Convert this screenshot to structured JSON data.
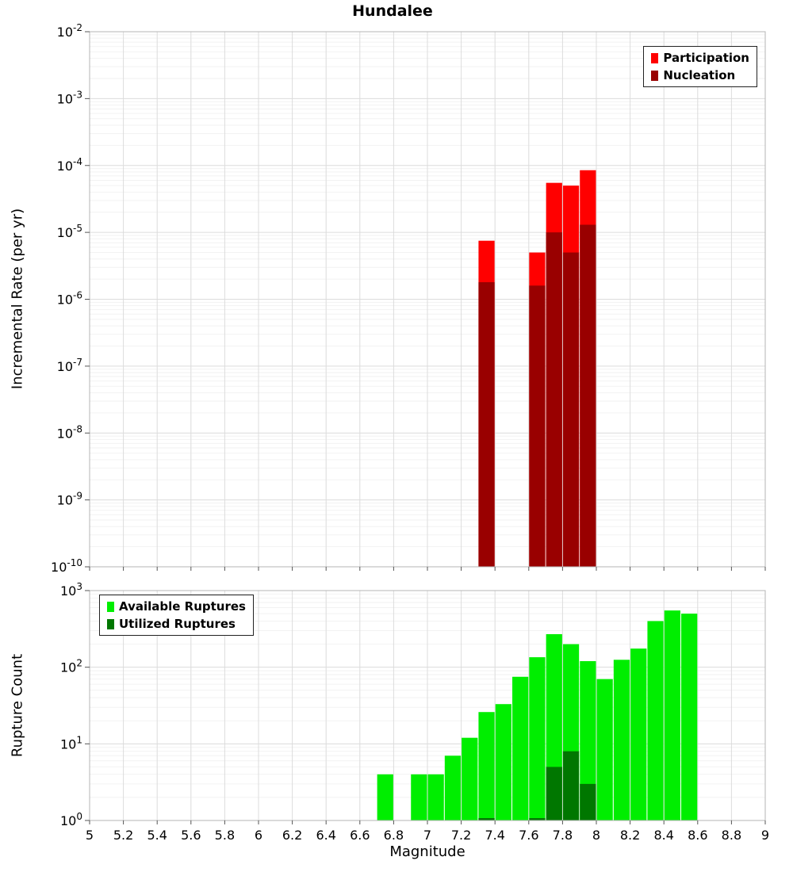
{
  "chart_data": [
    {
      "type": "bar",
      "panel": "incremental-rate",
      "title": "Hundalee",
      "ylabel": "Incremental Rate (per yr)",
      "yscale": "log",
      "xlim": [
        5,
        9
      ],
      "ylim": [
        1e-10,
        0.01
      ],
      "bin_width": 0.1,
      "yticks_exponents": [
        -2,
        -3,
        -4,
        -5,
        -6,
        -7,
        -8,
        -9,
        -10
      ],
      "legend_position": "top-right",
      "grid": true,
      "series": [
        {
          "name": "Participation",
          "color": "#ff0000",
          "x": [
            7.35,
            7.65,
            7.75,
            7.85,
            7.95
          ],
          "values": [
            7.5e-06,
            5e-06,
            5.5e-05,
            5e-05,
            8.5e-05
          ]
        },
        {
          "name": "Nucleation",
          "color": "#990000",
          "x": [
            7.35,
            7.65,
            7.75,
            7.85,
            7.95
          ],
          "values": [
            1.8e-06,
            1.6e-06,
            1e-05,
            5e-06,
            1.3e-05
          ]
        }
      ]
    },
    {
      "type": "bar",
      "panel": "rupture-count",
      "xlabel": "Magnitude",
      "ylabel": "Rupture Count",
      "yscale": "log",
      "xlim": [
        5,
        9
      ],
      "ylim": [
        1,
        1000
      ],
      "bin_width": 0.1,
      "yticks_exponents": [
        3,
        2,
        1,
        0
      ],
      "legend_position": "top-left",
      "grid": true,
      "series": [
        {
          "name": "Available Ruptures",
          "color": "#00ee00",
          "x": [
            6.75,
            6.95,
            7.05,
            7.15,
            7.25,
            7.35,
            7.45,
            7.55,
            7.65,
            7.75,
            7.85,
            7.95,
            8.05,
            8.15,
            8.25,
            8.35,
            8.45,
            8.55
          ],
          "values": [
            4,
            4,
            4,
            7,
            12,
            26,
            33,
            75,
            135,
            270,
            200,
            120,
            70,
            125,
            175,
            400,
            550,
            500
          ]
        },
        {
          "name": "Utilized Ruptures",
          "color": "#007700",
          "x": [
            7.35,
            7.65,
            7.75,
            7.85,
            7.95
          ],
          "values": [
            1,
            1,
            5,
            8,
            3
          ]
        }
      ]
    }
  ],
  "xticks": [
    "5",
    "5.2",
    "5.4",
    "5.6",
    "5.8",
    "6",
    "6.2",
    "6.4",
    "6.6",
    "6.8",
    "7",
    "7.2",
    "7.4",
    "7.6",
    "7.8",
    "8",
    "8.2",
    "8.4",
    "8.6",
    "8.8",
    "9"
  ]
}
